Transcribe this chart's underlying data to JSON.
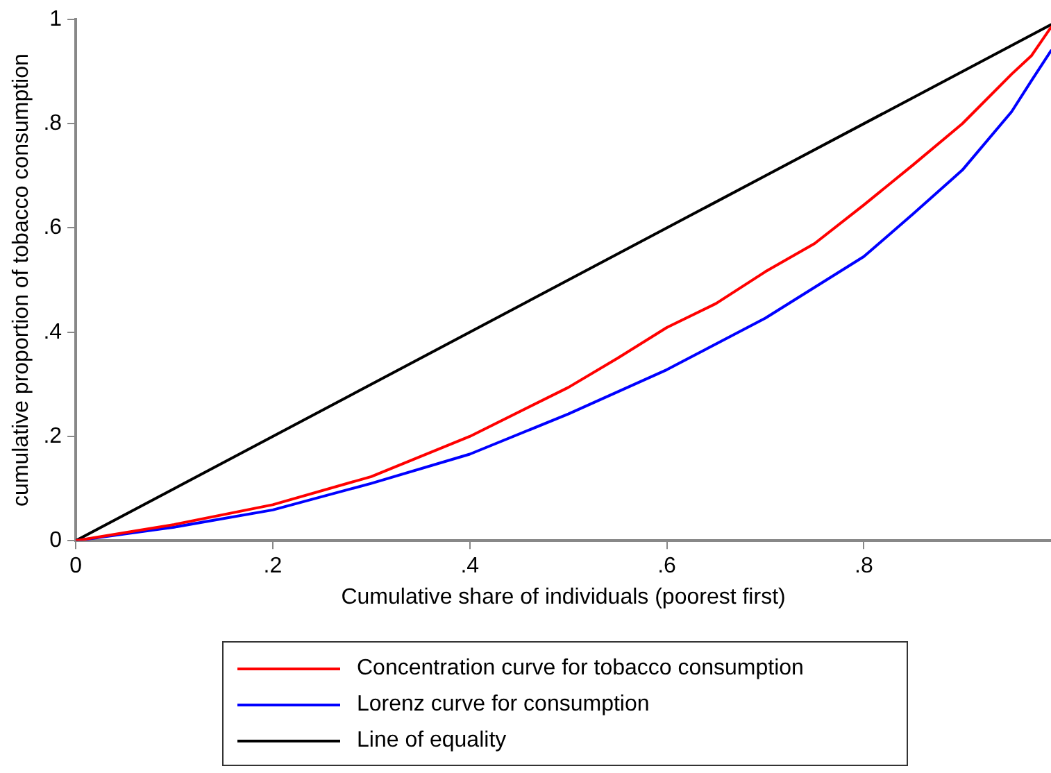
{
  "chart_data": {
    "type": "line",
    "xlabel": "Cumulative share of individuals (poorest first)",
    "ylabel": "cumulative proportion of tobacco consumption",
    "xlim": [
      0,
      0.99
    ],
    "ylim": [
      0,
      1
    ],
    "xticks": [
      {
        "value": 0,
        "label": "0"
      },
      {
        "value": 0.2,
        "label": ".2"
      },
      {
        "value": 0.4,
        "label": ".4"
      },
      {
        "value": 0.6,
        "label": ".6"
      },
      {
        "value": 0.8,
        "label": ".8"
      }
    ],
    "yticks": [
      {
        "value": 0,
        "label": "0"
      },
      {
        "value": 0.2,
        "label": ".2"
      },
      {
        "value": 0.4,
        "label": ".4"
      },
      {
        "value": 0.6,
        "label": ".6"
      },
      {
        "value": 0.8,
        "label": ".8"
      },
      {
        "value": 1,
        "label": "1"
      }
    ],
    "grid": false,
    "legend": "bottom",
    "marker": "none",
    "line_style": "solid",
    "series": [
      {
        "name": "Concentration curve for tobacco consumption",
        "color": "#ff0000",
        "x": [
          0,
          0.1,
          0.2,
          0.3,
          0.4,
          0.5,
          0.55,
          0.6,
          0.65,
          0.7,
          0.75,
          0.8,
          0.85,
          0.9,
          0.95,
          0.97,
          0.99
        ],
        "values": [
          0,
          0.031,
          0.069,
          0.123,
          0.2,
          0.294,
          0.35,
          0.409,
          0.455,
          0.516,
          0.57,
          0.644,
          0.721,
          0.8,
          0.895,
          0.93,
          0.985
        ]
      },
      {
        "name": "Lorenz curve for consumption",
        "color": "#0000ff",
        "x": [
          0,
          0.1,
          0.2,
          0.3,
          0.4,
          0.5,
          0.6,
          0.7,
          0.8,
          0.85,
          0.9,
          0.95,
          0.97,
          0.99
        ],
        "values": [
          0,
          0.026,
          0.059,
          0.11,
          0.166,
          0.243,
          0.328,
          0.427,
          0.545,
          0.627,
          0.711,
          0.823,
          0.882,
          0.94
        ]
      },
      {
        "name": "Line of equality",
        "color": "#000000",
        "x": [
          0,
          0.99
        ],
        "values": [
          0,
          0.99
        ]
      }
    ]
  }
}
